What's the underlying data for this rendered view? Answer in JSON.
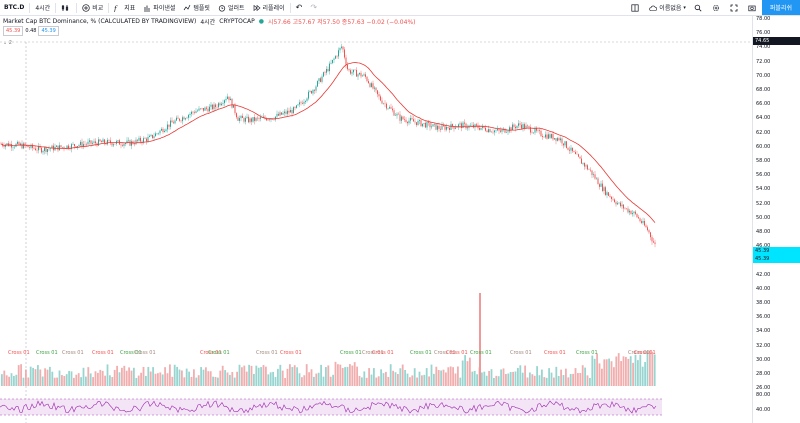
{
  "toolbar": {
    "symbol": "BTC.D",
    "interval": "4시간",
    "compare": "비교",
    "indicators": "지표",
    "financials": "파이낸셜",
    "templates": "템플릿",
    "alert": "얼러트",
    "replay": "리플레이",
    "layout_name": "이름없음",
    "publish": "퍼블리쉬"
  },
  "legend": {
    "title": "Market Cap BTC Dominance, % (CALCULATED BY TRADINGVIEW)",
    "interval": "4시간",
    "exchange": "CRYPTOCAP",
    "ohlc": "시57.66  고57.67  저57.50  종57.63  −0.02 (−0.04%)"
  },
  "inputs": {
    "a": "45.39",
    "b": "0.48",
    "c": "45.39"
  },
  "indicator2_label": "2",
  "price_axis": {
    "ticks": [
      "78.00",
      "76.00",
      "74.00",
      "72.00",
      "70.00",
      "68.00",
      "66.00",
      "64.00",
      "62.00",
      "60.00",
      "58.00",
      "56.00",
      "54.00",
      "52.00",
      "50.00",
      "48.00",
      "46.00",
      "44.00",
      "42.00",
      "40.00",
      "38.00",
      "36.00",
      "34.00",
      "32.00",
      "30.00",
      "28.00",
      "26.00"
    ],
    "top_badge": "74.65",
    "price_badge_1": "45.39",
    "price_badge_2": "45.39",
    "rsi_ticks": [
      "80.00",
      "40.00"
    ]
  },
  "cross_labels": [
    "Cross 01",
    "Cross 01",
    "Cross 01",
    "Cross 01",
    "Cross 01",
    "Cross 01",
    "Cross 01",
    "Cross 01",
    "Cross 01",
    "Cross 01",
    "Cross 01",
    "Cross 01",
    "Cross 01",
    "Cross 01",
    "Cross 01",
    "Cross 01",
    "Cross 01",
    "Cross 01",
    "Cross 01",
    "Cross 01",
    "Cross 01",
    "Cross 01"
  ],
  "colors": {
    "up": "#26a69a",
    "down": "#ef5350",
    "ma": "#e53935",
    "rsi": "#9c27b0",
    "rsi_band": "#f3e5f5",
    "accent": "#2196f3",
    "badge": "#00e5ff"
  }
}
